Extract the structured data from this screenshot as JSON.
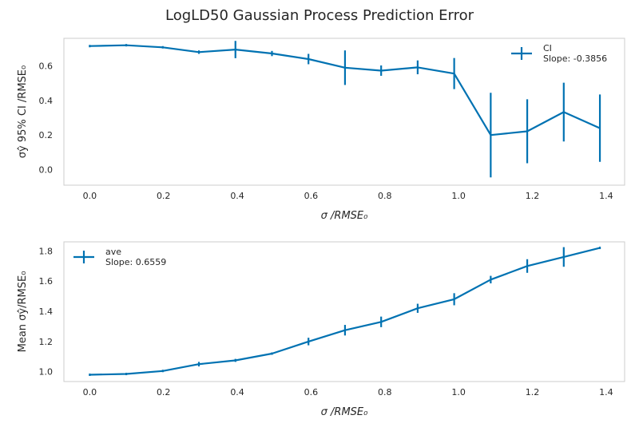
{
  "figure": {
    "title": "LogLD50 Gaussian Process Prediction Error"
  },
  "chart_data": [
    {
      "type": "line",
      "xlabel": "σ /RMSE₀",
      "ylabel": "σŷ 95% CI /RMSE₀",
      "xlim": [
        -0.07,
        1.45
      ],
      "ylim": [
        -0.09,
        0.76
      ],
      "xticks": [
        0.0,
        0.2,
        0.4,
        0.6,
        0.8,
        1.0,
        1.2,
        1.4
      ],
      "yticks": [
        0.0,
        0.2,
        0.4,
        0.6
      ],
      "xtick_labels": [
        "0.0",
        "0.2",
        "0.4",
        "0.6",
        "0.8",
        "1.0",
        "1.2",
        "1.4"
      ],
      "ytick_labels": [
        "0.0",
        "0.2",
        "0.4",
        "0.6"
      ],
      "grid": false,
      "legend_position": "upper right",
      "series": [
        {
          "name": "CI\nSlope: -0.3856",
          "legend_lines": [
            "CI",
            "Slope: -0.3856"
          ],
          "color": "#0072B2",
          "x": [
            0.0,
            0.099,
            0.198,
            0.296,
            0.395,
            0.494,
            0.593,
            0.692,
            0.79,
            0.889,
            0.988,
            1.087,
            1.186,
            1.285,
            1.383
          ],
          "y": [
            0.715,
            0.72,
            0.708,
            0.68,
            0.695,
            0.672,
            0.64,
            0.59,
            0.573,
            0.592,
            0.556,
            0.2,
            0.222,
            0.333,
            0.24
          ],
          "yerr": [
            0.0,
            0.005,
            0.005,
            0.01,
            0.05,
            0.015,
            0.03,
            0.1,
            0.03,
            0.04,
            0.09,
            0.245,
            0.185,
            0.17,
            0.195
          ]
        }
      ]
    },
    {
      "type": "line",
      "xlabel": "σ /RMSE₀",
      "ylabel": "Mean σŷ/RMSE₀",
      "xlim": [
        -0.07,
        1.45
      ],
      "ylim": [
        0.935,
        1.86
      ],
      "xticks": [
        0.0,
        0.2,
        0.4,
        0.6,
        0.8,
        1.0,
        1.2,
        1.4
      ],
      "yticks": [
        1.0,
        1.2,
        1.4,
        1.6,
        1.8
      ],
      "xtick_labels": [
        "0.0",
        "0.2",
        "0.4",
        "0.6",
        "0.8",
        "1.0",
        "1.2",
        "1.4"
      ],
      "ytick_labels": [
        "1.0",
        "1.2",
        "1.4",
        "1.6",
        "1.8"
      ],
      "grid": false,
      "legend_position": "upper left",
      "series": [
        {
          "name": "ave\nSlope: 0.6559",
          "legend_lines": [
            "ave",
            "Slope: 0.6559"
          ],
          "color": "#0072B2",
          "x": [
            0.0,
            0.099,
            0.198,
            0.296,
            0.395,
            0.494,
            0.593,
            0.692,
            0.79,
            0.889,
            0.988,
            1.087,
            1.186,
            1.285,
            1.383
          ],
          "y": [
            0.98,
            0.985,
            1.005,
            1.05,
            1.075,
            1.12,
            1.2,
            1.275,
            1.33,
            1.42,
            1.48,
            1.61,
            1.7,
            1.76,
            1.82
          ],
          "yerr": [
            0.0,
            0.003,
            0.008,
            0.015,
            0.01,
            0.005,
            0.025,
            0.035,
            0.035,
            0.03,
            0.04,
            0.025,
            0.045,
            0.065,
            0.0
          ]
        }
      ]
    }
  ]
}
